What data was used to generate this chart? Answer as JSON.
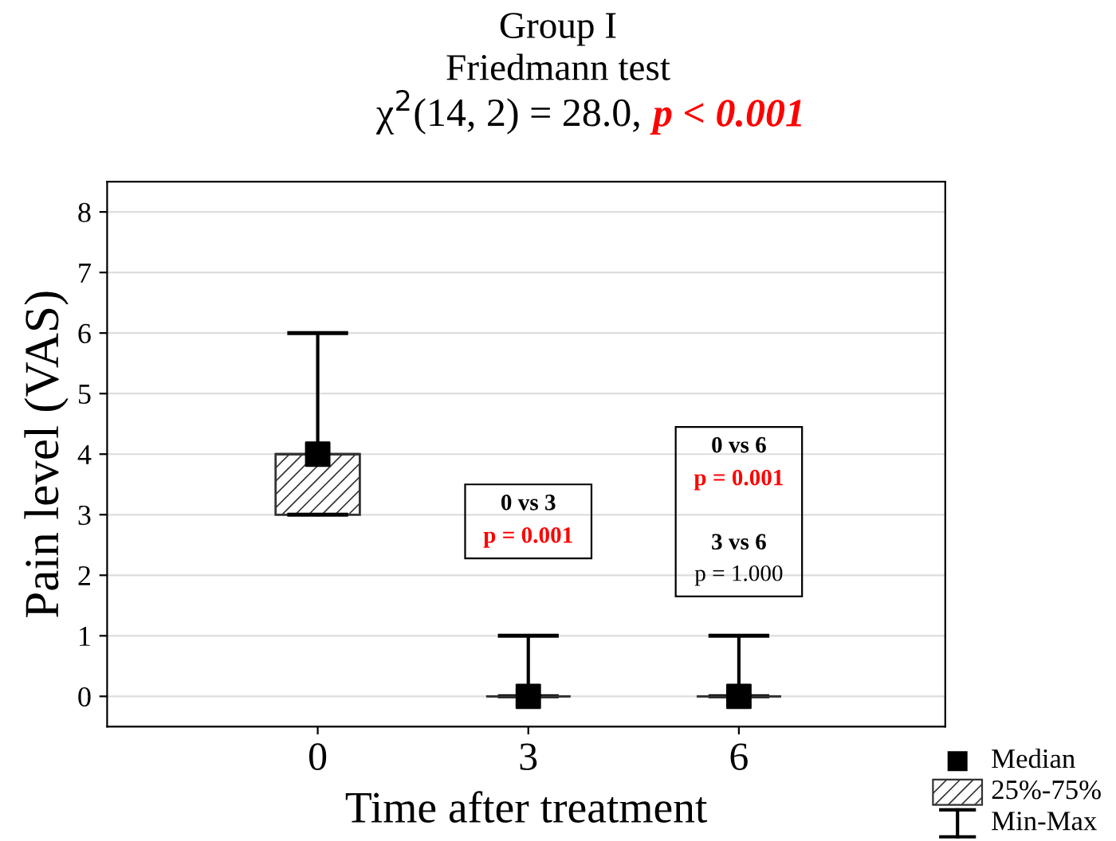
{
  "chart_data": {
    "type": "box",
    "title": "Group I",
    "subtitle": "Friedmann test",
    "xlabel": "Time after treatment",
    "ylabel": "Pain level (VAS)",
    "categories": [
      "0",
      "3",
      "6"
    ],
    "boxes": [
      {
        "low": 3,
        "q1": 3,
        "median": 4,
        "q3": 4,
        "high": 6
      },
      {
        "low": 0,
        "q1": 0,
        "median": 0,
        "q3": 0,
        "high": 1
      },
      {
        "low": 0,
        "q1": 0,
        "median": 0,
        "q3": 0,
        "high": 1
      }
    ],
    "color": "#333333",
    "series": [
      {
        "type": "scatter",
        "x": [
          "0",
          "3",
          "6"
        ],
        "values": [
          4,
          0,
          0
        ],
        "color": "#000000",
        "marker": "square"
      }
    ],
    "ylim": [
      -0.5,
      8.5
    ],
    "yticks": [
      0,
      1,
      2,
      3,
      4,
      5,
      6,
      7,
      8
    ],
    "grid": "y",
    "annotations": [
      "χ$^{2}$(14, 2) = 28.0,",
      "p < 0.001",
      "0 vs 3",
      "p = 0.001",
      "0 vs 6",
      "p = 0.001",
      "3 vs 6",
      "p = 1.000",
      "Median",
      "25%-75%",
      "Min-Max"
    ]
  }
}
